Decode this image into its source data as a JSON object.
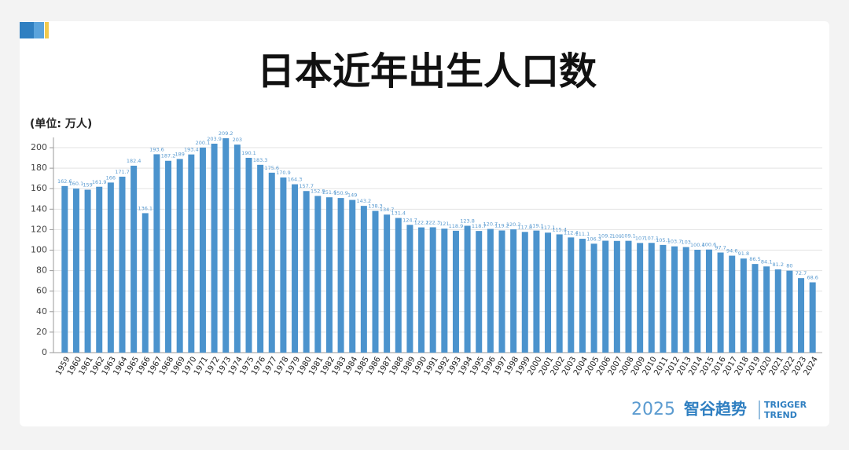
{
  "chart_data": {
    "type": "bar",
    "title": "日本近年出生人口数",
    "y_label": "(单位: 万人)",
    "categories": [
      "1959",
      "1960",
      "1961",
      "1962",
      "1963",
      "1964",
      "1965",
      "1966",
      "1967",
      "1968",
      "1969",
      "1970",
      "1971",
      "1972",
      "1973",
      "1974",
      "1975",
      "1976",
      "1977",
      "1978",
      "1979",
      "1980",
      "1981",
      "1982",
      "1983",
      "1984",
      "1985",
      "1986",
      "1987",
      "1988",
      "1989",
      "1990",
      "1991",
      "1992",
      "1993",
      "1994",
      "1995",
      "1996",
      "1997",
      "1998",
      "1999",
      "2000",
      "2001",
      "2002",
      "2003",
      "2004",
      "2005",
      "2006",
      "2007",
      "2008",
      "2009",
      "2010",
      "2011",
      "2012",
      "2013",
      "2014",
      "2015",
      "2016",
      "2017",
      "2018",
      "2019",
      "2020",
      "2021",
      "2022",
      "2023",
      "2024"
    ],
    "values": [
      162.6,
      160.1,
      159,
      161.9,
      166,
      171.7,
      182.4,
      136.1,
      193.6,
      187.2,
      189,
      193.4,
      200.1,
      203.9,
      209.2,
      203,
      190.1,
      183.3,
      175.6,
      170.9,
      164.3,
      157.7,
      152.9,
      151.6,
      150.9,
      149,
      143.2,
      138.3,
      134.7,
      131.4,
      124.7,
      122.2,
      122.3,
      121,
      118.9,
      123.8,
      118.7,
      120.7,
      119.2,
      120.3,
      117.8,
      119.1,
      117.1,
      115.4,
      112.4,
      111.1,
      106.3,
      109.2,
      109,
      109.1,
      107,
      107.1,
      105.1,
      103.7,
      103,
      100.4,
      100.6,
      97.7,
      94.6,
      91.8,
      86.5,
      84.1,
      81.2,
      80,
      72.7,
      68.6
    ],
    "color": "#4b93cd",
    "ylim": [
      0,
      210
    ],
    "yticks": [
      0,
      20,
      40,
      60,
      80,
      100,
      120,
      140,
      160,
      180,
      200
    ],
    "grid": true
  },
  "brand": {
    "year": "2025",
    "name": "智谷趋势",
    "en1": "TRIGGER",
    "en2": "TREND"
  }
}
